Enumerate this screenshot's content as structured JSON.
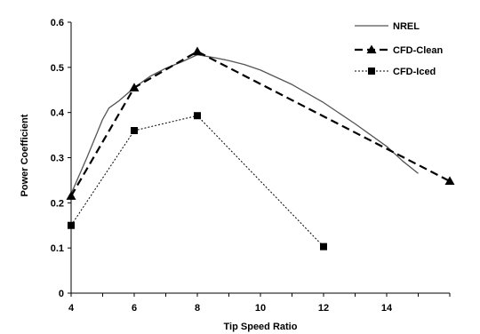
{
  "chart_data": {
    "type": "line",
    "title": "",
    "xlabel": "Tip Speed Ratio",
    "ylabel": "Power Coefficient",
    "xlim": [
      4,
      16
    ],
    "ylim": [
      0,
      0.6
    ],
    "xticks": [
      4,
      6,
      8,
      10,
      12,
      14
    ],
    "yticks": [
      0,
      0.1,
      0.2,
      0.3,
      0.4,
      0.5,
      0.6
    ],
    "grid": false,
    "legend_position": "top-right",
    "series": [
      {
        "name": "NREL",
        "style": "solid",
        "marker": "none",
        "color": "#555555",
        "x": [
          4.0,
          4.5,
          5.0,
          5.2,
          5.5,
          6.0,
          6.5,
          7.0,
          7.5,
          8.0,
          8.5,
          9.0,
          9.5,
          10.0,
          11.0,
          12.0,
          13.0,
          14.0,
          14.5,
          15.0
        ],
        "y": [
          0.22,
          0.3,
          0.385,
          0.41,
          0.425,
          0.455,
          0.48,
          0.498,
          0.512,
          0.528,
          0.522,
          0.515,
          0.506,
          0.494,
          0.462,
          0.422,
          0.375,
          0.325,
          0.293,
          0.265
        ]
      },
      {
        "name": "CFD-Clean",
        "style": "dashed",
        "marker": "triangle",
        "color": "#000000",
        "x": [
          4,
          6,
          8,
          16
        ],
        "y": [
          0.215,
          0.455,
          0.535,
          0.248
        ]
      },
      {
        "name": "CFD-Iced",
        "style": "dotted",
        "marker": "square",
        "color": "#000000",
        "x": [
          4,
          6,
          8,
          12
        ],
        "y": [
          0.15,
          0.36,
          0.393,
          0.103
        ]
      }
    ]
  }
}
